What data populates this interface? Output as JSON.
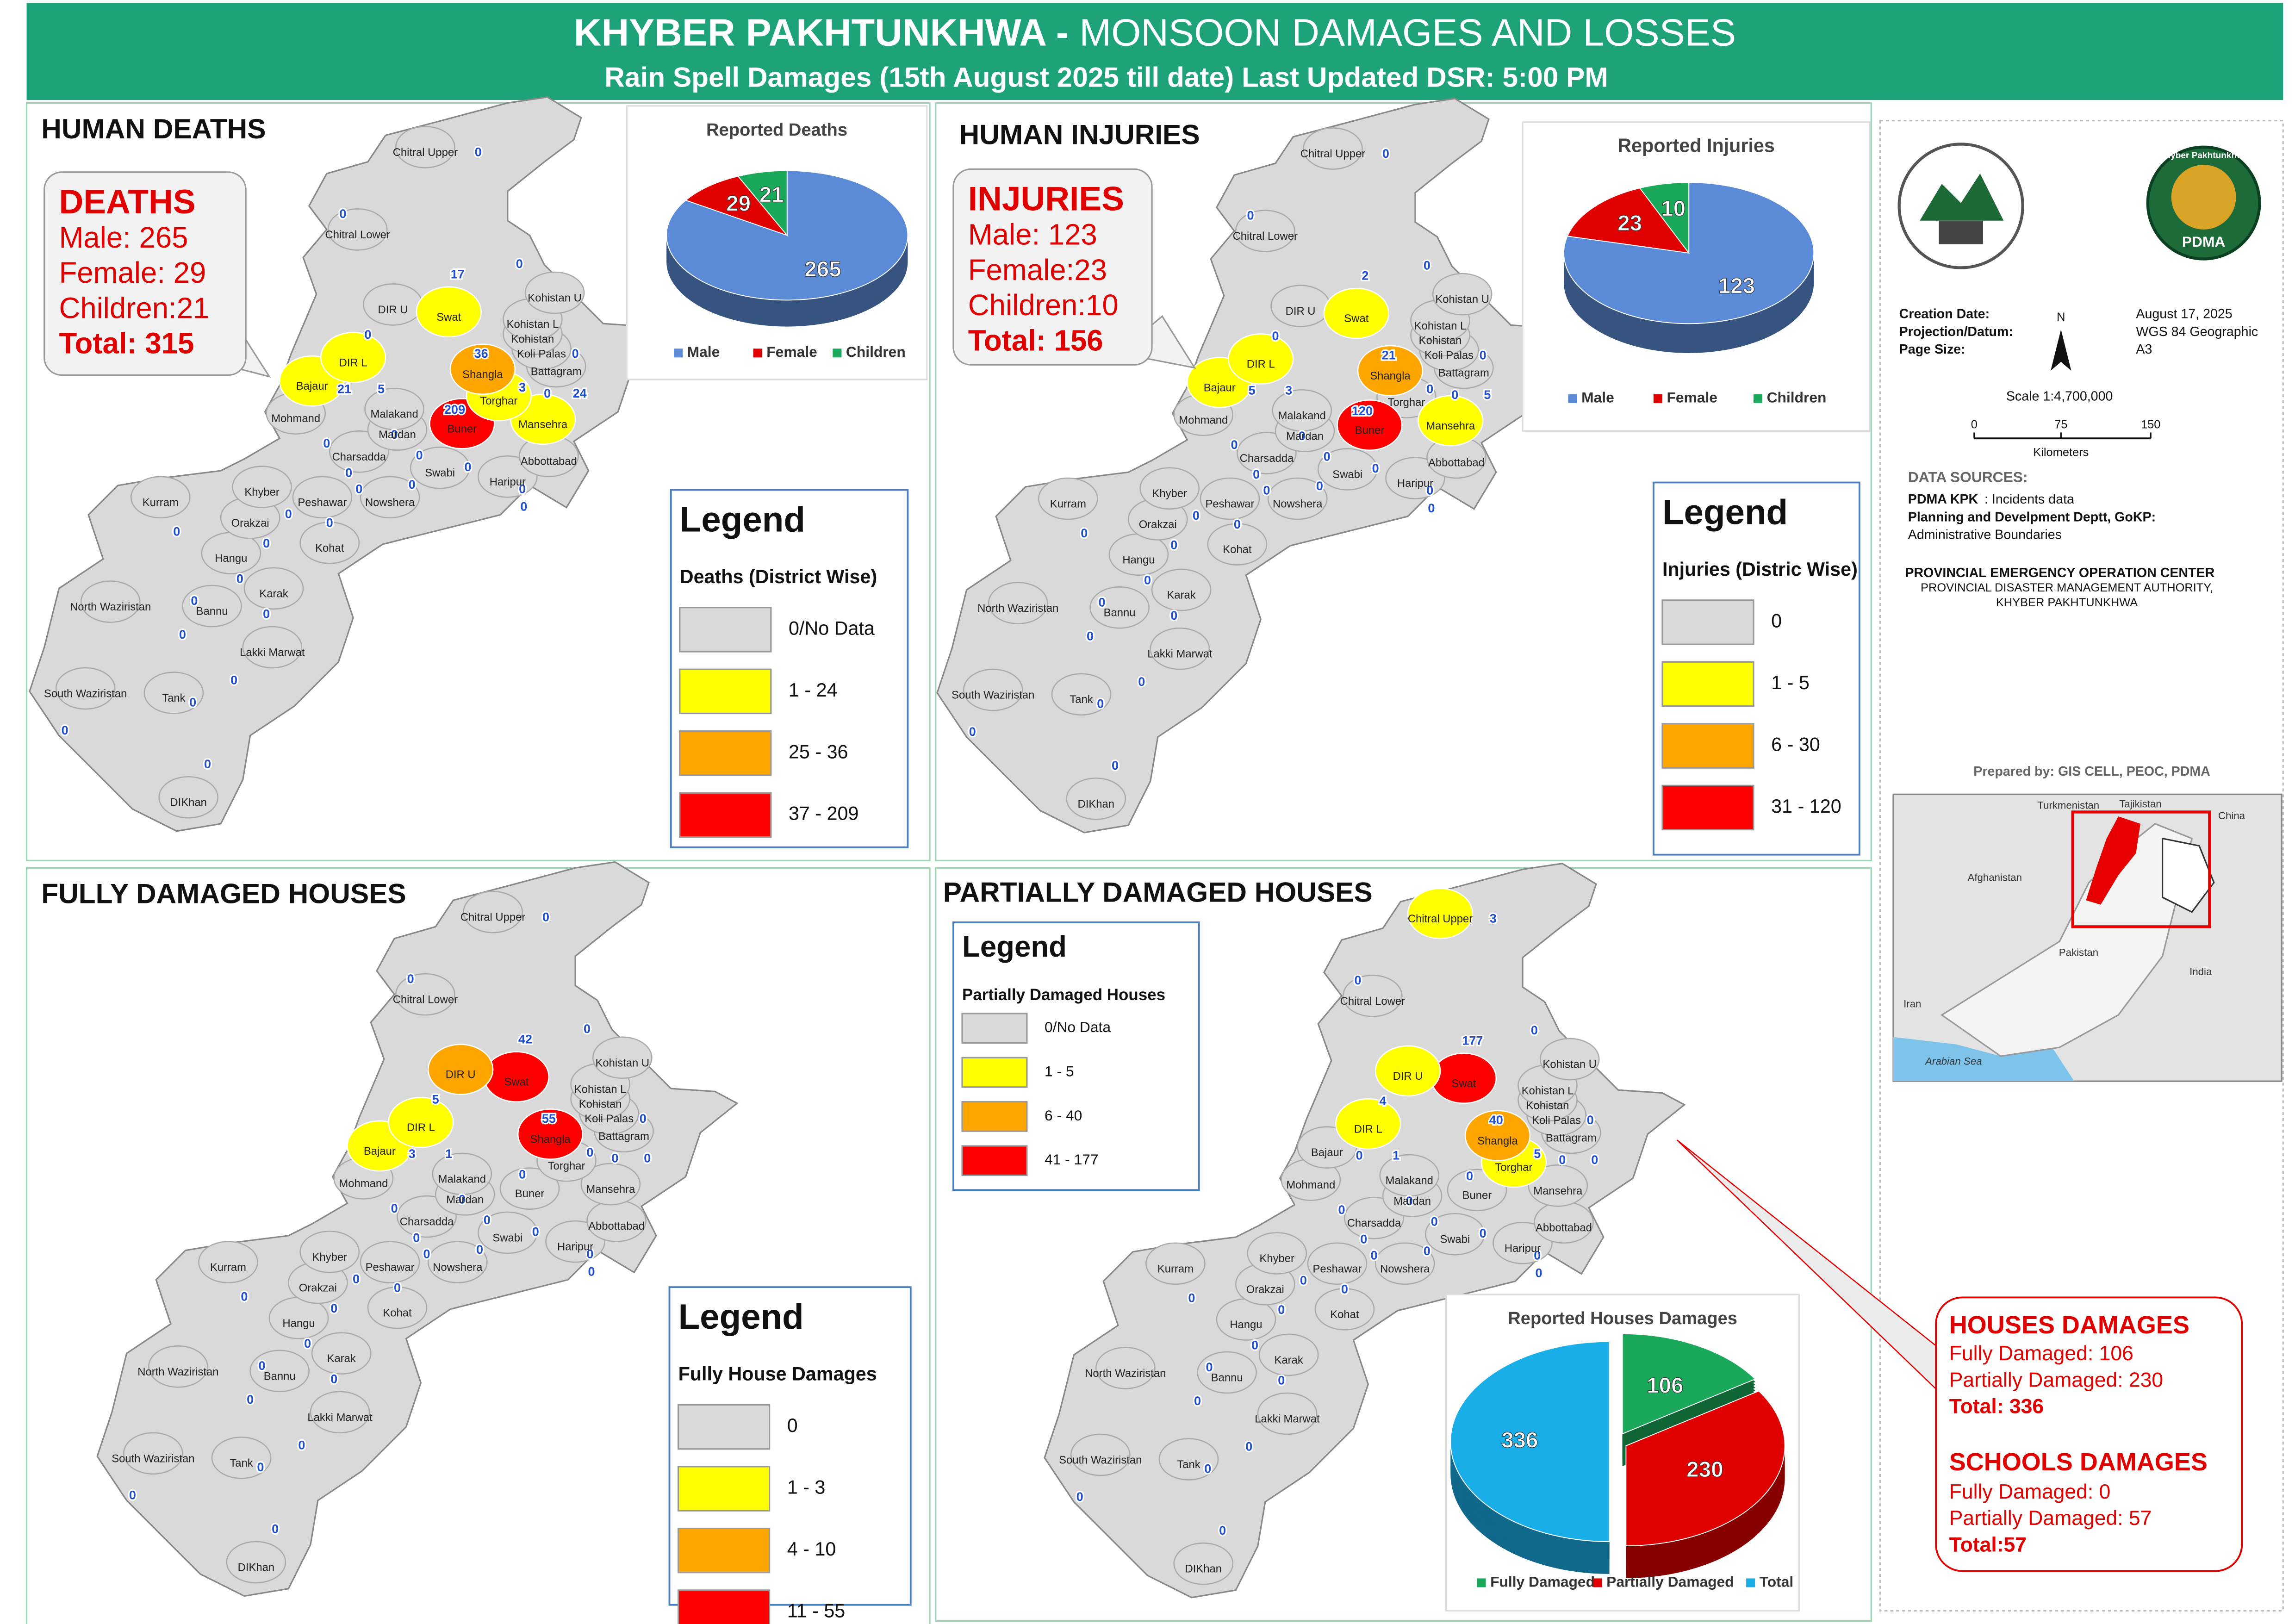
{
  "header": {
    "title_bold": "KHYBER PAKHTUNKHWA - ",
    "title_rest": "MONSOON DAMAGES AND LOSSES",
    "subtitle": "Rain Spell Damages (15th August 2025 till date) Last Updated DSR: 5:00 PM"
  },
  "districts": [
    "Chitral Upper",
    "Chitral Lower",
    "DIR U",
    "Swat",
    "Kohistan U",
    "Kohistan L",
    "Kohistan",
    "Koli Palas",
    "Shangla",
    "Battagram",
    "Torghar",
    "DIR L",
    "Bajaur",
    "Malakand",
    "Buner",
    "Mansehra",
    "Mohmand",
    "Mardan",
    "Charsadda",
    "Swabi",
    "Abbottabad",
    "Haripur",
    "Khyber",
    "Peshawar",
    "Nowshera",
    "Kurram",
    "Orakzai",
    "Hangu",
    "Kohat",
    "Karak",
    "North Waziristan",
    "Bannu",
    "Lakki Marwat",
    "South Waziristan",
    "Tank",
    "DIKhan"
  ],
  "panels": [
    {
      "title": "HUMAN DEATHS",
      "values": [
        0,
        0,
        0,
        17,
        0,
        null,
        null,
        0,
        36,
        0,
        3,
        5,
        21,
        0,
        209,
        24,
        0,
        0,
        0,
        0,
        0,
        0,
        0,
        0,
        0,
        0,
        0,
        0,
        0,
        0,
        0,
        0,
        0,
        0,
        0,
        0
      ],
      "fills": [
        "#d9d9d9",
        "#d9d9d9",
        "#d9d9d9",
        "#ffff00",
        "#d9d9d9",
        "#d9d9d9",
        "#d9d9d9",
        "#d9d9d9",
        "#ffa500",
        "#d9d9d9",
        "#ffff00",
        "#ffff00",
        "#ffff00",
        "#d9d9d9",
        "#ff0000",
        "#ffff00",
        "#d9d9d9",
        "#d9d9d9",
        "#d9d9d9",
        "#d9d9d9",
        "#d9d9d9",
        "#d9d9d9",
        "#d9d9d9",
        "#d9d9d9",
        "#d9d9d9",
        "#d9d9d9",
        "#d9d9d9",
        "#d9d9d9",
        "#d9d9d9",
        "#d9d9d9",
        "#d9d9d9",
        "#d9d9d9",
        "#d9d9d9",
        "#d9d9d9",
        "#d9d9d9",
        "#d9d9d9"
      ],
      "legend": {
        "title": "Legend",
        "subtitle": "Deaths (District Wise)",
        "items": [
          {
            "label": "0/No Data",
            "color": "#d9d9d9"
          },
          {
            "label": "1 - 24",
            "color": "#ffff00"
          },
          {
            "label": "25 - 36",
            "color": "#ffa500"
          },
          {
            "label": "37 - 209",
            "color": "#ff0000"
          }
        ]
      },
      "callout": [
        "DEATHS",
        "Male: 265",
        "Female: 29",
        "Children:21",
        "Total: 315"
      ]
    },
    {
      "title": "HUMAN INJURIES",
      "values": [
        0,
        0,
        0,
        2,
        0,
        null,
        null,
        0,
        21,
        0,
        0,
        3,
        5,
        0,
        120,
        5,
        0,
        0,
        0,
        0,
        0,
        0,
        0,
        0,
        0,
        0,
        0,
        0,
        0,
        0,
        0,
        0,
        0,
        0,
        0,
        0
      ],
      "fills": [
        "#d9d9d9",
        "#d9d9d9",
        "#d9d9d9",
        "#ffff00",
        "#d9d9d9",
        "#d9d9d9",
        "#d9d9d9",
        "#d9d9d9",
        "#ffa500",
        "#d9d9d9",
        "#d9d9d9",
        "#ffff00",
        "#ffff00",
        "#d9d9d9",
        "#ff0000",
        "#ffff00",
        "#d9d9d9",
        "#d9d9d9",
        "#d9d9d9",
        "#d9d9d9",
        "#d9d9d9",
        "#d9d9d9",
        "#d9d9d9",
        "#d9d9d9",
        "#d9d9d9",
        "#d9d9d9",
        "#d9d9d9",
        "#d9d9d9",
        "#d9d9d9",
        "#d9d9d9",
        "#d9d9d9",
        "#d9d9d9",
        "#d9d9d9",
        "#d9d9d9",
        "#d9d9d9",
        "#d9d9d9"
      ],
      "legend": {
        "title": "Legend",
        "subtitle": "Injuries (Distric Wise)",
        "items": [
          {
            "label": "0",
            "color": "#d9d9d9"
          },
          {
            "label": "1 - 5",
            "color": "#ffff00"
          },
          {
            "label": "6 - 30",
            "color": "#ffa500"
          },
          {
            "label": "31 - 120",
            "color": "#ff0000"
          }
        ]
      },
      "callout": [
        "INJURIES",
        "Male:  123",
        "Female:23",
        "Children:10",
        "Total: 156"
      ]
    },
    {
      "title": "FULLY DAMAGED HOUSES",
      "values": [
        0,
        0,
        5,
        42,
        0,
        null,
        null,
        0,
        55,
        0,
        0,
        1,
        3,
        0,
        0,
        0,
        0,
        0,
        0,
        0,
        0,
        0,
        0,
        0,
        0,
        0,
        0,
        0,
        0,
        0,
        0,
        0,
        0,
        0,
        0,
        0
      ],
      "fills": [
        "#d9d9d9",
        "#d9d9d9",
        "#ffa500",
        "#ff0000",
        "#d9d9d9",
        "#d9d9d9",
        "#d9d9d9",
        "#d9d9d9",
        "#ff0000",
        "#d9d9d9",
        "#d9d9d9",
        "#ffff00",
        "#ffff00",
        "#d9d9d9",
        "#d9d9d9",
        "#d9d9d9",
        "#d9d9d9",
        "#d9d9d9",
        "#d9d9d9",
        "#d9d9d9",
        "#d9d9d9",
        "#d9d9d9",
        "#d9d9d9",
        "#d9d9d9",
        "#d9d9d9",
        "#d9d9d9",
        "#d9d9d9",
        "#d9d9d9",
        "#d9d9d9",
        "#d9d9d9",
        "#d9d9d9",
        "#d9d9d9",
        "#d9d9d9",
        "#d9d9d9",
        "#d9d9d9",
        "#d9d9d9"
      ],
      "legend": {
        "title": "Legend",
        "subtitle": "Fully House Damages",
        "items": [
          {
            "label": "0",
            "color": "#d9d9d9"
          },
          {
            "label": "1 - 3",
            "color": "#ffff00"
          },
          {
            "label": "4 - 10",
            "color": "#ffa500"
          },
          {
            "label": "11 - 55",
            "color": "#ff0000"
          }
        ]
      }
    },
    {
      "title": "PARTIALLY DAMAGED HOUSES",
      "values": [
        3,
        0,
        4,
        177,
        0,
        null,
        null,
        0,
        40,
        0,
        5,
        1,
        0,
        0,
        0,
        0,
        0,
        0,
        0,
        0,
        0,
        0,
        0,
        0,
        0,
        0,
        0,
        0,
        0,
        0,
        0,
        0,
        0,
        0,
        0,
        0
      ],
      "fills": [
        "#ffff00",
        "#d9d9d9",
        "#ffff00",
        "#ff0000",
        "#d9d9d9",
        "#d9d9d9",
        "#d9d9d9",
        "#d9d9d9",
        "#ffa500",
        "#d9d9d9",
        "#ffff00",
        "#ffff00",
        "#d9d9d9",
        "#d9d9d9",
        "#d9d9d9",
        "#d9d9d9",
        "#d9d9d9",
        "#d9d9d9",
        "#d9d9d9",
        "#d9d9d9",
        "#d9d9d9",
        "#d9d9d9",
        "#d9d9d9",
        "#d9d9d9",
        "#d9d9d9",
        "#d9d9d9",
        "#d9d9d9",
        "#d9d9d9",
        "#d9d9d9",
        "#d9d9d9",
        "#d9d9d9",
        "#d9d9d9",
        "#d9d9d9",
        "#d9d9d9",
        "#d9d9d9",
        "#d9d9d9"
      ],
      "legend": {
        "title": "Legend",
        "subtitle": "Partially  Damaged Houses",
        "items": [
          {
            "label": "0/No Data",
            "color": "#d9d9d9"
          },
          {
            "label": "1 - 5",
            "color": "#ffff00"
          },
          {
            "label": "6 - 40",
            "color": "#ffa500"
          },
          {
            "label": "41 - 177",
            "color": "#ff0000"
          }
        ]
      }
    }
  ],
  "houses_callout": [
    "HOUSES DAMAGES",
    "Fully Damaged: 106",
    "Partially Damaged: 230",
    "Total: 336",
    "SCHOOLS DAMAGES",
    "Fully Damaged: 0",
    "Partially Damaged: 57",
    "Total:57"
  ],
  "chart_data": [
    {
      "type": "pie",
      "title": "Reported Deaths",
      "categories": [
        "Male",
        "Female",
        "Children"
      ],
      "values": [
        265,
        29,
        21
      ],
      "colors": [
        "#5b8bd6",
        "#e00000",
        "#1aa85a"
      ]
    },
    {
      "type": "pie",
      "title": "Reported Injuries",
      "categories": [
        "Male",
        "Female",
        "Children"
      ],
      "values": [
        123,
        23,
        10
      ],
      "colors": [
        "#5b8bd6",
        "#e00000",
        "#1aa85a"
      ]
    },
    {
      "type": "pie",
      "title": "Reported Houses Damages",
      "categories": [
        "Fully Damaged",
        "Partially Damaged",
        "Total"
      ],
      "values": [
        106,
        230,
        336
      ],
      "colors": [
        "#1aa85a",
        "#e00000",
        "#1aaee8"
      ]
    }
  ],
  "info": {
    "logo_text": "Khyber Pakhtunkhwa",
    "logo_name": "PDMA",
    "meta": [
      [
        "Creation Date:",
        "August 17, 2025"
      ],
      [
        "Projection/Datum:",
        "WGS 84 Geographic"
      ],
      [
        "Page Size:",
        "A3"
      ]
    ],
    "north": "N",
    "scale": "Scale 1:4,700,000",
    "scale_ticks": [
      "0",
      "75",
      "150"
    ],
    "scale_unit": "Kilometers",
    "sources_title": "DATA SOURCES:",
    "source1_bold": "PDMA KPK",
    "source1": ": Incidents data",
    "source2_bold": "Planning and Develpment Deptt, GoKP:",
    "source2": "Administrative Boundaries",
    "org": [
      "PROVINCIAL EMERGENCY OPERATION CENTER",
      "PROVINCIAL DISASTER MANAGEMENT AUTHORITY,",
      "KHYBER PAKHTUNKHWA"
    ],
    "prepared": "Prepared by: GIS CELL, PEOC, PDMA",
    "inset": [
      "Turkmenistan",
      "Tajikistan",
      "China",
      "Afghanistan",
      "Pakistan",
      "India",
      "Iran",
      "Arabian Sea"
    ]
  }
}
